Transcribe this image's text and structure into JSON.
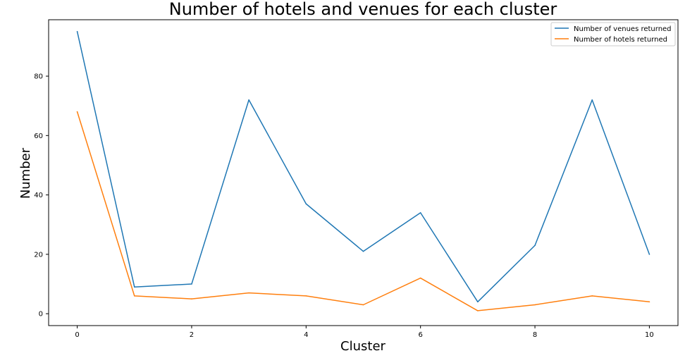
{
  "chart_data": {
    "type": "line",
    "title": "Number of hotels and venues for each cluster",
    "xlabel": "Cluster",
    "ylabel": "Number",
    "x": [
      0,
      1,
      2,
      3,
      4,
      5,
      6,
      7,
      8,
      9,
      10
    ],
    "xlim": [
      -0.5,
      10.5
    ],
    "ylim": [
      -4,
      99
    ],
    "xticks": [
      0,
      2,
      4,
      6,
      8,
      10
    ],
    "yticks": [
      0,
      20,
      40,
      60,
      80
    ],
    "grid": false,
    "legend_position": "top-right",
    "series": [
      {
        "name": "Number of venues returned",
        "color": "#1f77b4",
        "values": [
          95,
          9,
          10,
          72,
          37,
          21,
          34,
          4,
          23,
          72,
          20
        ]
      },
      {
        "name": "Number of hotels returned",
        "color": "#ff7f0e",
        "values": [
          68,
          6,
          5,
          7,
          6,
          3,
          12,
          1,
          3,
          6,
          4
        ]
      }
    ]
  }
}
